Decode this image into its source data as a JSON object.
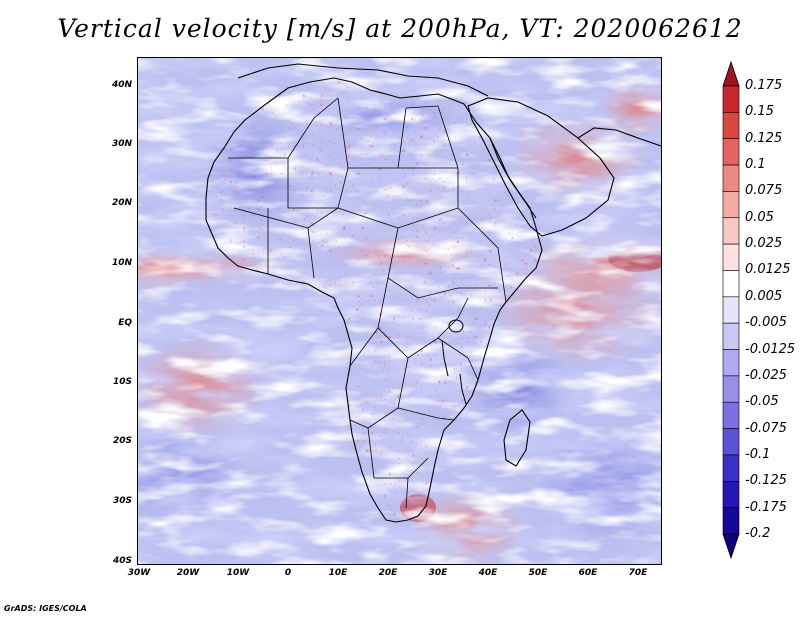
{
  "title": "Vertical velocity [m/s] at 200hPa, VT: 2020062612",
  "credit": "GrADS: IGES/COLA",
  "axes": {
    "lat_labels": [
      "40N",
      "30N",
      "20N",
      "10N",
      "EQ",
      "10S",
      "20S",
      "30S",
      "40S"
    ],
    "lon_labels": [
      "30W",
      "20W",
      "10W",
      "0",
      "10E",
      "20E",
      "30E",
      "40E",
      "50E",
      "60E",
      "70E"
    ]
  },
  "colorbar": {
    "labels": [
      "0.175",
      "0.15",
      "0.125",
      "0.1",
      "0.075",
      "0.05",
      "0.025",
      "0.0125",
      "0.005",
      "-0.005",
      "-0.0125",
      "-0.025",
      "-0.05",
      "-0.075",
      "-0.1",
      "-0.125",
      "-0.175",
      "-0.2"
    ],
    "colors": [
      "#a0141e",
      "#c8282d",
      "#dc4641",
      "#e6645f",
      "#ee8882",
      "#f4aaa5",
      "#f8c8c5",
      "#fbe2e0",
      "#ffffff",
      "#e6e4fb",
      "#ccc8f5",
      "#b0aaf0",
      "#9690ea",
      "#7a72e2",
      "#5c52d8",
      "#3c30c8",
      "#2416b4",
      "#16089a",
      "#0a0080"
    ]
  },
  "map": {
    "field_colors": {
      "blue_base": "#aab4ee",
      "red_base": "#f2aaa8",
      "dark_red": "#c82828",
      "dark_blue": "#4040c8"
    }
  }
}
